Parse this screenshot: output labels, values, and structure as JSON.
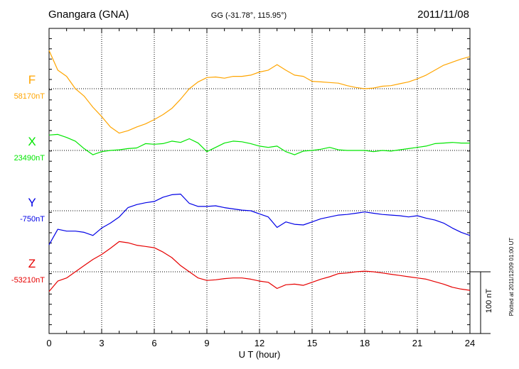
{
  "header": {
    "station": "Gnangara (GNA)",
    "coords": "GG (-31.78°, 115.95°)",
    "date": "2011/11/08"
  },
  "footer": {
    "plotted": "Plotted at 2011/12/09 01:00 UT"
  },
  "chart_data": {
    "type": "line",
    "xlabel": "U T (hour)",
    "xlim": [
      0,
      24
    ],
    "xticks": [
      0,
      3,
      6,
      9,
      12,
      15,
      18,
      21,
      24
    ],
    "xtick_labels": [
      "0",
      "3",
      "6",
      "9",
      "12",
      "15",
      "18",
      "21",
      "24"
    ],
    "grid": true,
    "scale_bar": {
      "label": "100 nT",
      "value_nT": 100
    },
    "series": [
      {
        "name": "F",
        "baseline_label": "58170nT",
        "baseline_nT": 58170,
        "color": "#ffa500",
        "x": [
          0,
          0.5,
          1,
          1.5,
          2,
          2.5,
          3,
          3.5,
          4,
          4.5,
          5,
          5.5,
          6,
          6.5,
          7,
          7.5,
          8,
          8.5,
          9,
          9.5,
          10,
          10.5,
          11,
          11.5,
          12,
          12.5,
          13,
          13.5,
          14,
          14.5,
          15,
          15.5,
          16,
          16.5,
          17,
          17.5,
          18,
          18.5,
          19,
          19.5,
          20,
          20.5,
          21,
          21.5,
          22,
          22.5,
          23,
          23.5,
          24
        ],
        "y": [
          58232,
          58200,
          58190,
          58170,
          58158,
          58140,
          58125,
          58108,
          58098,
          58102,
          58108,
          58113,
          58120,
          58128,
          58138,
          58153,
          58170,
          58181,
          58188,
          58189,
          58187,
          58190,
          58190,
          58192,
          58197,
          58200,
          58209,
          58200,
          58192,
          58190,
          58182,
          58181,
          58180,
          58179,
          58175,
          58172,
          58170,
          58171,
          58174,
          58175,
          58178,
          58181,
          58186,
          58192,
          58200,
          58208,
          58213,
          58218,
          58222
        ]
      },
      {
        "name": "X",
        "baseline_label": "23490nT",
        "baseline_nT": 23490,
        "color": "#00e600",
        "x": [
          0,
          0.5,
          1,
          1.5,
          2,
          2.5,
          3,
          3.5,
          4,
          4.5,
          5,
          5.5,
          6,
          6.5,
          7,
          7.5,
          8,
          8.5,
          9,
          9.5,
          10,
          10.5,
          11,
          11.5,
          12,
          12.5,
          13,
          13.5,
          14,
          14.5,
          15,
          15.5,
          16,
          16.5,
          17,
          17.5,
          18,
          18.5,
          19,
          19.5,
          20,
          20.5,
          21,
          21.5,
          22,
          22.5,
          23,
          23.5,
          24
        ],
        "y": [
          23515,
          23516,
          23511,
          23505,
          23493,
          23483,
          23488,
          23490,
          23491,
          23493,
          23494,
          23501,
          23500,
          23501,
          23505,
          23503,
          23509,
          23502,
          23488,
          23495,
          23502,
          23505,
          23504,
          23501,
          23497,
          23495,
          23497,
          23488,
          23483,
          23489,
          23490,
          23492,
          23495,
          23491,
          23490,
          23490,
          23490,
          23488,
          23490,
          23489,
          23491,
          23493,
          23495,
          23497,
          23501,
          23502,
          23503,
          23502,
          23502
        ]
      },
      {
        "name": "Y",
        "baseline_label": "-750nT",
        "baseline_nT": -750,
        "color": "#0000e6",
        "x": [
          0,
          0.5,
          1,
          1.5,
          2,
          2.5,
          3,
          3.5,
          4,
          4.5,
          5,
          5.5,
          6,
          6.5,
          7,
          7.5,
          8,
          8.5,
          9,
          9.5,
          10,
          10.5,
          11,
          11.5,
          12,
          12.5,
          13,
          13.5,
          14,
          14.5,
          15,
          15.5,
          16,
          16.5,
          17,
          17.5,
          18,
          18.5,
          19,
          19.5,
          20,
          20.5,
          21,
          21.5,
          22,
          22.5,
          23,
          23.5,
          24
        ],
        "y": [
          -805,
          -780,
          -783,
          -783,
          -785,
          -790,
          -778,
          -770,
          -760,
          -745,
          -740,
          -737,
          -735,
          -728,
          -724,
          -723,
          -738,
          -743,
          -743,
          -742,
          -745,
          -747,
          -749,
          -750,
          -755,
          -760,
          -777,
          -768,
          -772,
          -773,
          -768,
          -763,
          -760,
          -757,
          -756,
          -754,
          -752,
          -754,
          -756,
          -757,
          -758,
          -760,
          -758,
          -762,
          -765,
          -770,
          -778,
          -785,
          -790
        ]
      },
      {
        "name": "Z",
        "baseline_label": "-53210nT",
        "baseline_nT": -53210,
        "color": "#e60000",
        "x": [
          0,
          0.5,
          1,
          1.5,
          2,
          2.5,
          3,
          3.5,
          4,
          4.5,
          5,
          5.5,
          6,
          6.5,
          7,
          7.5,
          8,
          8.5,
          9,
          9.5,
          10,
          10.5,
          11,
          11.5,
          12,
          12.5,
          13,
          13.5,
          14,
          14.5,
          15,
          15.5,
          16,
          16.5,
          17,
          17.5,
          18,
          18.5,
          19,
          19.5,
          20,
          20.5,
          21,
          21.5,
          22,
          22.5,
          23,
          23.5,
          24
        ],
        "y": [
          -53242,
          -53225,
          -53220,
          -53210,
          -53200,
          -53190,
          -53182,
          -53172,
          -53161,
          -53163,
          -53167,
          -53169,
          -53171,
          -53178,
          -53187,
          -53200,
          -53210,
          -53220,
          -53224,
          -53223,
          -53221,
          -53220,
          -53220,
          -53222,
          -53225,
          -53227,
          -53237,
          -53231,
          -53230,
          -53232,
          -53227,
          -53222,
          -53218,
          -53213,
          -53212,
          -53210,
          -53209,
          -53210,
          -53212,
          -53214,
          -53216,
          -53218,
          -53220,
          -53222,
          -53226,
          -53230,
          -53235,
          -53238,
          -53240
        ]
      }
    ]
  }
}
